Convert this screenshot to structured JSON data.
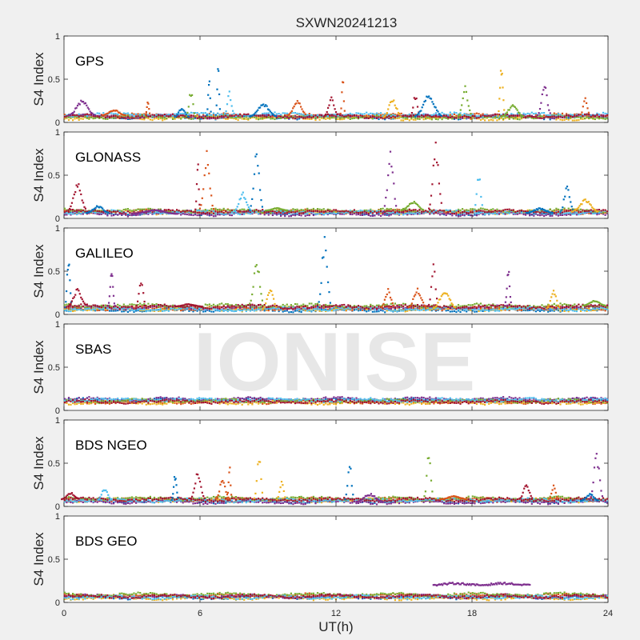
{
  "chart_data": {
    "type": "scatter",
    "title": "SXWN20241213",
    "xlabel": "UT(h)",
    "ylabel": "S4 Index",
    "xlim": [
      0,
      24
    ],
    "ylim": [
      0,
      1
    ],
    "xticks": [
      0,
      6,
      12,
      18,
      24
    ],
    "yticks": [
      0,
      0.5,
      1
    ],
    "ytick_labels": [
      "0",
      "0.5",
      "1"
    ],
    "watermark": "IONISE",
    "series_colors": [
      "#0072bd",
      "#d95319",
      "#edb120",
      "#7e2f8e",
      "#77ac30",
      "#4dbeee",
      "#a2142f"
    ],
    "panels": [
      {
        "name": "GPS",
        "baseline": [
          0.06,
          0.08,
          0.05,
          0.07,
          0.06,
          0.09,
          0.07
        ],
        "bumps": [
          {
            "x": 0.8,
            "y": 0.27,
            "w": 0.6,
            "s": 3
          },
          {
            "x": 2.2,
            "y": 0.15,
            "w": 0.5,
            "s": 1
          },
          {
            "x": 3.7,
            "y": 0.27,
            "w": 0.1,
            "s": 1
          },
          {
            "x": 5.2,
            "y": 0.18,
            "w": 0.3,
            "s": 0
          },
          {
            "x": 5.6,
            "y": 0.38,
            "w": 0.2,
            "s": 4
          },
          {
            "x": 6.4,
            "y": 0.57,
            "w": 0.1,
            "s": 0
          },
          {
            "x": 6.8,
            "y": 0.72,
            "w": 0.1,
            "s": 0
          },
          {
            "x": 7.3,
            "y": 0.36,
            "w": 0.2,
            "s": 5
          },
          {
            "x": 8.8,
            "y": 0.22,
            "w": 0.6,
            "s": 0
          },
          {
            "x": 10.3,
            "y": 0.27,
            "w": 0.4,
            "s": 1
          },
          {
            "x": 11.8,
            "y": 0.3,
            "w": 0.3,
            "s": 6
          },
          {
            "x": 12.3,
            "y": 0.54,
            "w": 0.1,
            "s": 1
          },
          {
            "x": 14.5,
            "y": 0.28,
            "w": 0.4,
            "s": 2
          },
          {
            "x": 15.5,
            "y": 0.33,
            "w": 0.2,
            "s": 6
          },
          {
            "x": 16.1,
            "y": 0.32,
            "w": 0.6,
            "s": 0
          },
          {
            "x": 17.7,
            "y": 0.42,
            "w": 0.3,
            "s": 4
          },
          {
            "x": 19.3,
            "y": 0.72,
            "w": 0.15,
            "s": 2
          },
          {
            "x": 19.8,
            "y": 0.2,
            "w": 0.5,
            "s": 4
          },
          {
            "x": 21.2,
            "y": 0.43,
            "w": 0.3,
            "s": 3
          },
          {
            "x": 23.0,
            "y": 0.3,
            "w": 0.2,
            "s": 1
          }
        ]
      },
      {
        "name": "GLONASS",
        "baseline": [
          0.06,
          0.08,
          0.07,
          0.05,
          0.09,
          0.07,
          0.08
        ],
        "bumps": [
          {
            "x": 0.6,
            "y": 0.44,
            "w": 0.4,
            "s": 6
          },
          {
            "x": 1.5,
            "y": 0.15,
            "w": 0.5,
            "s": 0
          },
          {
            "x": 4.0,
            "y": 0.1,
            "w": 1.0,
            "s": 3
          },
          {
            "x": 5.9,
            "y": 0.7,
            "w": 0.1,
            "s": 6
          },
          {
            "x": 6.3,
            "y": 0.8,
            "w": 0.3,
            "s": 1
          },
          {
            "x": 7.9,
            "y": 0.3,
            "w": 0.4,
            "s": 5
          },
          {
            "x": 8.5,
            "y": 0.8,
            "w": 0.3,
            "s": 0
          },
          {
            "x": 9.4,
            "y": 0.12,
            "w": 0.5,
            "s": 4
          },
          {
            "x": 14.4,
            "y": 0.83,
            "w": 0.3,
            "s": 3
          },
          {
            "x": 15.4,
            "y": 0.2,
            "w": 0.5,
            "s": 4
          },
          {
            "x": 16.4,
            "y": 0.9,
            "w": 0.3,
            "s": 6
          },
          {
            "x": 18.3,
            "y": 0.55,
            "w": 0.2,
            "s": 5
          },
          {
            "x": 21.0,
            "y": 0.12,
            "w": 0.6,
            "s": 0
          },
          {
            "x": 22.2,
            "y": 0.4,
            "w": 0.3,
            "s": 0
          },
          {
            "x": 23.0,
            "y": 0.22,
            "w": 0.6,
            "s": 2
          }
        ]
      },
      {
        "name": "GALILEO",
        "baseline": [
          0.05,
          0.07,
          0.06,
          0.08,
          0.1,
          0.06,
          0.09
        ],
        "bumps": [
          {
            "x": 0.2,
            "y": 0.72,
            "w": 0.15,
            "s": 0
          },
          {
            "x": 0.6,
            "y": 0.3,
            "w": 0.4,
            "s": 6
          },
          {
            "x": 2.1,
            "y": 0.5,
            "w": 0.15,
            "s": 3
          },
          {
            "x": 3.4,
            "y": 0.43,
            "w": 0.2,
            "s": 6
          },
          {
            "x": 5.5,
            "y": 0.12,
            "w": 0.6,
            "s": 6
          },
          {
            "x": 8.5,
            "y": 0.65,
            "w": 0.3,
            "s": 4
          },
          {
            "x": 9.1,
            "y": 0.32,
            "w": 0.3,
            "s": 2
          },
          {
            "x": 11.5,
            "y": 0.9,
            "w": 0.3,
            "s": 0
          },
          {
            "x": 14.3,
            "y": 0.3,
            "w": 0.3,
            "s": 1
          },
          {
            "x": 15.6,
            "y": 0.3,
            "w": 0.4,
            "s": 1
          },
          {
            "x": 16.3,
            "y": 0.6,
            "w": 0.2,
            "s": 6
          },
          {
            "x": 16.8,
            "y": 0.3,
            "w": 0.5,
            "s": 2
          },
          {
            "x": 19.6,
            "y": 0.55,
            "w": 0.15,
            "s": 3
          },
          {
            "x": 21.6,
            "y": 0.28,
            "w": 0.3,
            "s": 2
          },
          {
            "x": 23.4,
            "y": 0.16,
            "w": 0.5,
            "s": 4
          }
        ]
      },
      {
        "name": "SBAS",
        "baseline": [
          0.12,
          0.1,
          0.09,
          0.13,
          0.11,
          0.12,
          0.1
        ],
        "bumps": []
      },
      {
        "name": "BDS NGEO",
        "baseline": [
          0.06,
          0.08,
          0.07,
          0.05,
          0.09,
          0.07,
          0.08
        ],
        "bumps": [
          {
            "x": 0.3,
            "y": 0.16,
            "w": 0.4,
            "s": 6
          },
          {
            "x": 1.8,
            "y": 0.22,
            "w": 0.3,
            "s": 5
          },
          {
            "x": 4.9,
            "y": 0.38,
            "w": 0.15,
            "s": 0
          },
          {
            "x": 5.9,
            "y": 0.4,
            "w": 0.3,
            "s": 6
          },
          {
            "x": 7.0,
            "y": 0.32,
            "w": 0.3,
            "s": 1
          },
          {
            "x": 7.3,
            "y": 0.5,
            "w": 0.1,
            "s": 1
          },
          {
            "x": 8.6,
            "y": 0.62,
            "w": 0.2,
            "s": 2
          },
          {
            "x": 9.6,
            "y": 0.3,
            "w": 0.2,
            "s": 2
          },
          {
            "x": 12.6,
            "y": 0.52,
            "w": 0.2,
            "s": 0
          },
          {
            "x": 13.5,
            "y": 0.15,
            "w": 0.6,
            "s": 3
          },
          {
            "x": 16.1,
            "y": 0.68,
            "w": 0.2,
            "s": 4
          },
          {
            "x": 17.2,
            "y": 0.12,
            "w": 0.6,
            "s": 1
          },
          {
            "x": 20.4,
            "y": 0.27,
            "w": 0.3,
            "s": 6
          },
          {
            "x": 21.6,
            "y": 0.25,
            "w": 0.2,
            "s": 1
          },
          {
            "x": 23.5,
            "y": 0.62,
            "w": 0.3,
            "s": 3
          },
          {
            "x": 23.2,
            "y": 0.15,
            "w": 0.4,
            "s": 0
          }
        ]
      },
      {
        "name": "BDS GEO",
        "baseline": [
          0.06,
          0.08,
          0.05,
          0.07,
          0.09,
          0.06,
          0.07
        ],
        "bumps": [],
        "segment": {
          "x0": 16.3,
          "x1": 20.6,
          "y": 0.21,
          "s": 3
        }
      }
    ]
  }
}
